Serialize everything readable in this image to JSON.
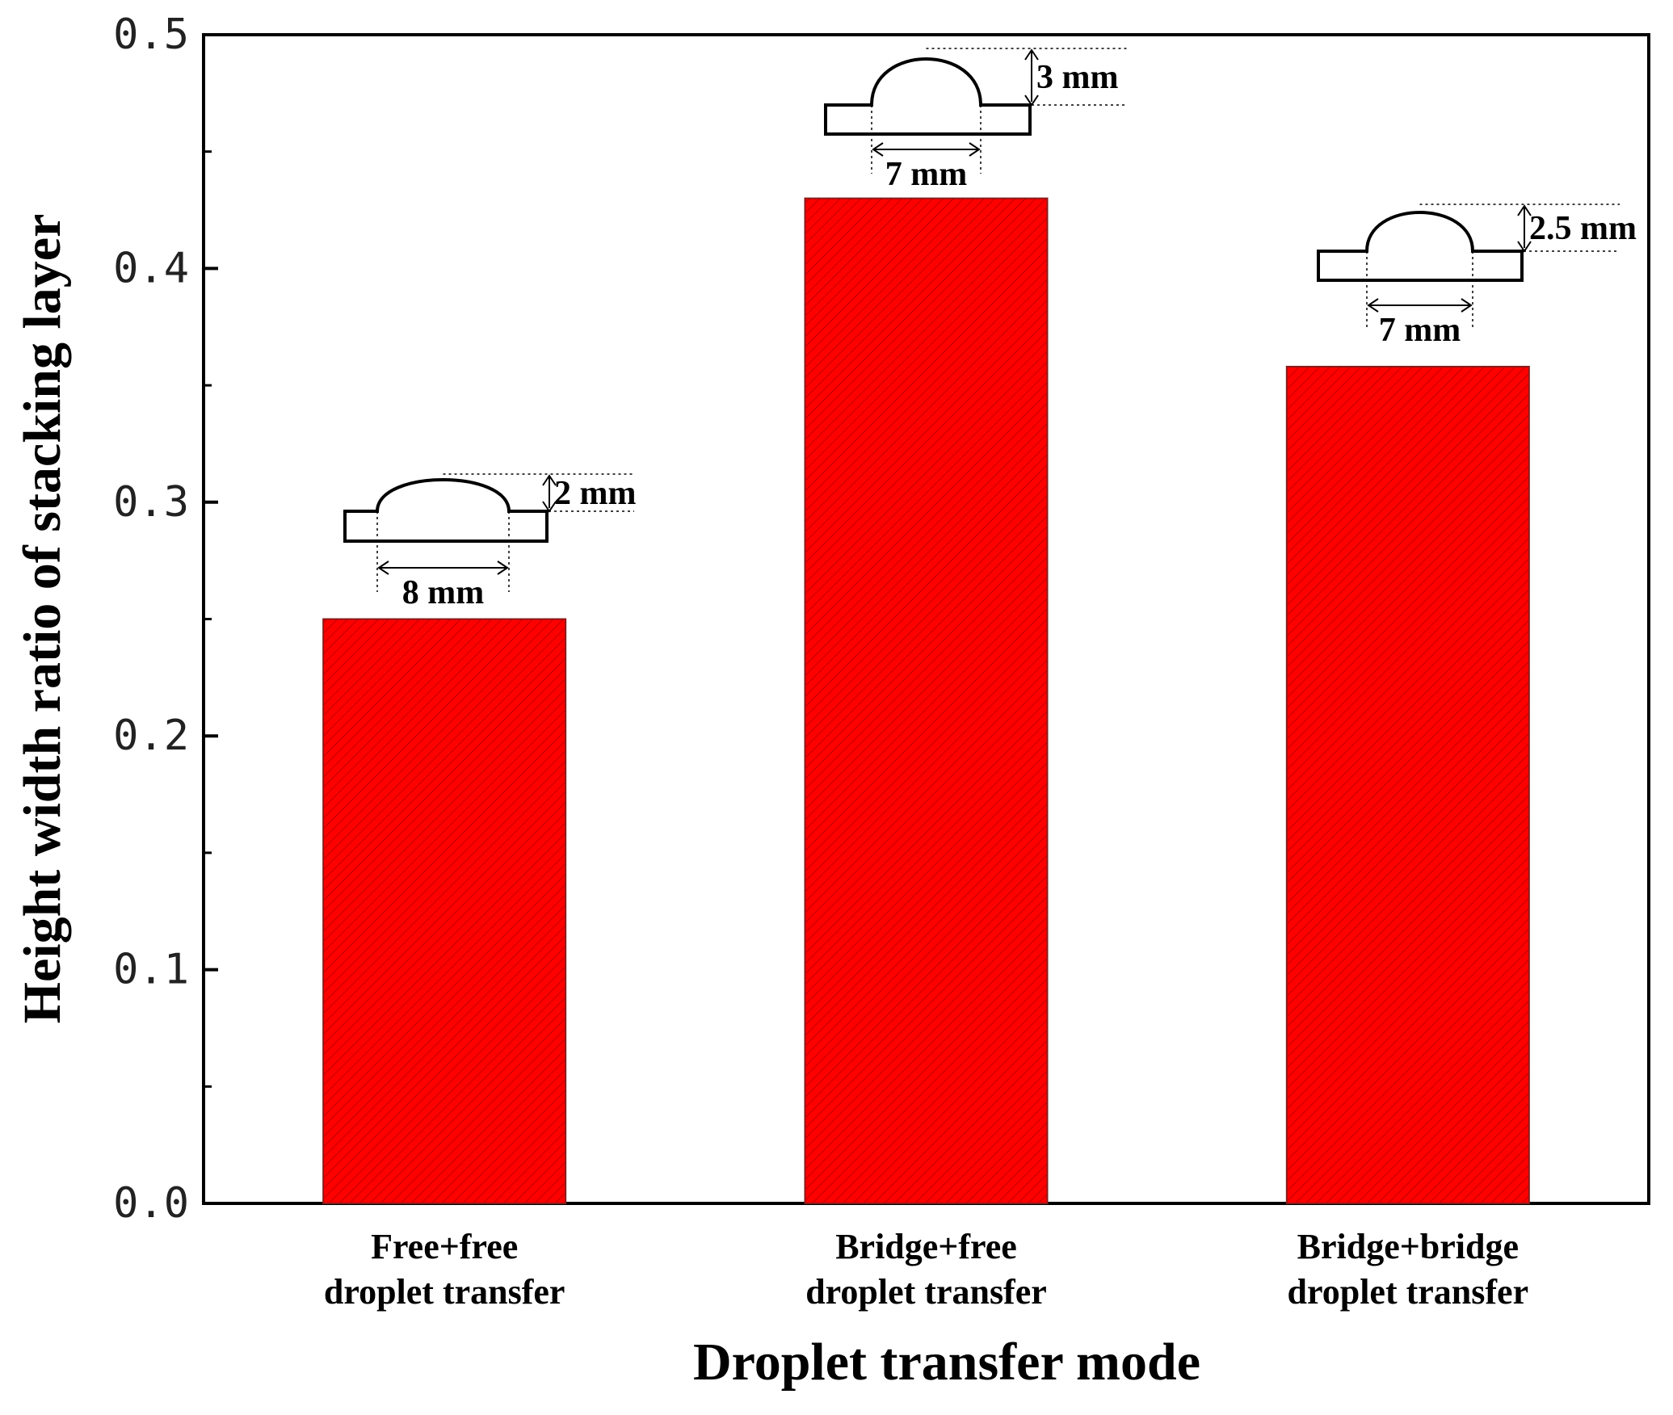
{
  "chart_data": {
    "type": "bar",
    "categories": [
      [
        "Free+free",
        "droplet transfer"
      ],
      [
        "Bridge+free",
        "droplet transfer"
      ],
      [
        "Bridge+bridge",
        "droplet transfer"
      ]
    ],
    "values": [
      0.25,
      0.43,
      0.358
    ],
    "xlabel": "Droplet transfer mode",
    "ylabel": "Height width ratio of stacking layer",
    "ylim": [
      0,
      0.5
    ],
    "yticks": [
      "0.0",
      "0.1",
      "0.2",
      "0.3",
      "0.4",
      "0.5"
    ],
    "grid": false,
    "bar_color": "#ff0000",
    "bar_pattern": "diagonal-hatch",
    "annotations": [
      {
        "category": 0,
        "height_label": "2 mm",
        "width_label": "8 mm"
      },
      {
        "category": 1,
        "height_label": "3 mm",
        "width_label": "7 mm"
      },
      {
        "category": 2,
        "height_label": "2.5 mm",
        "width_label": "7 mm"
      }
    ]
  }
}
